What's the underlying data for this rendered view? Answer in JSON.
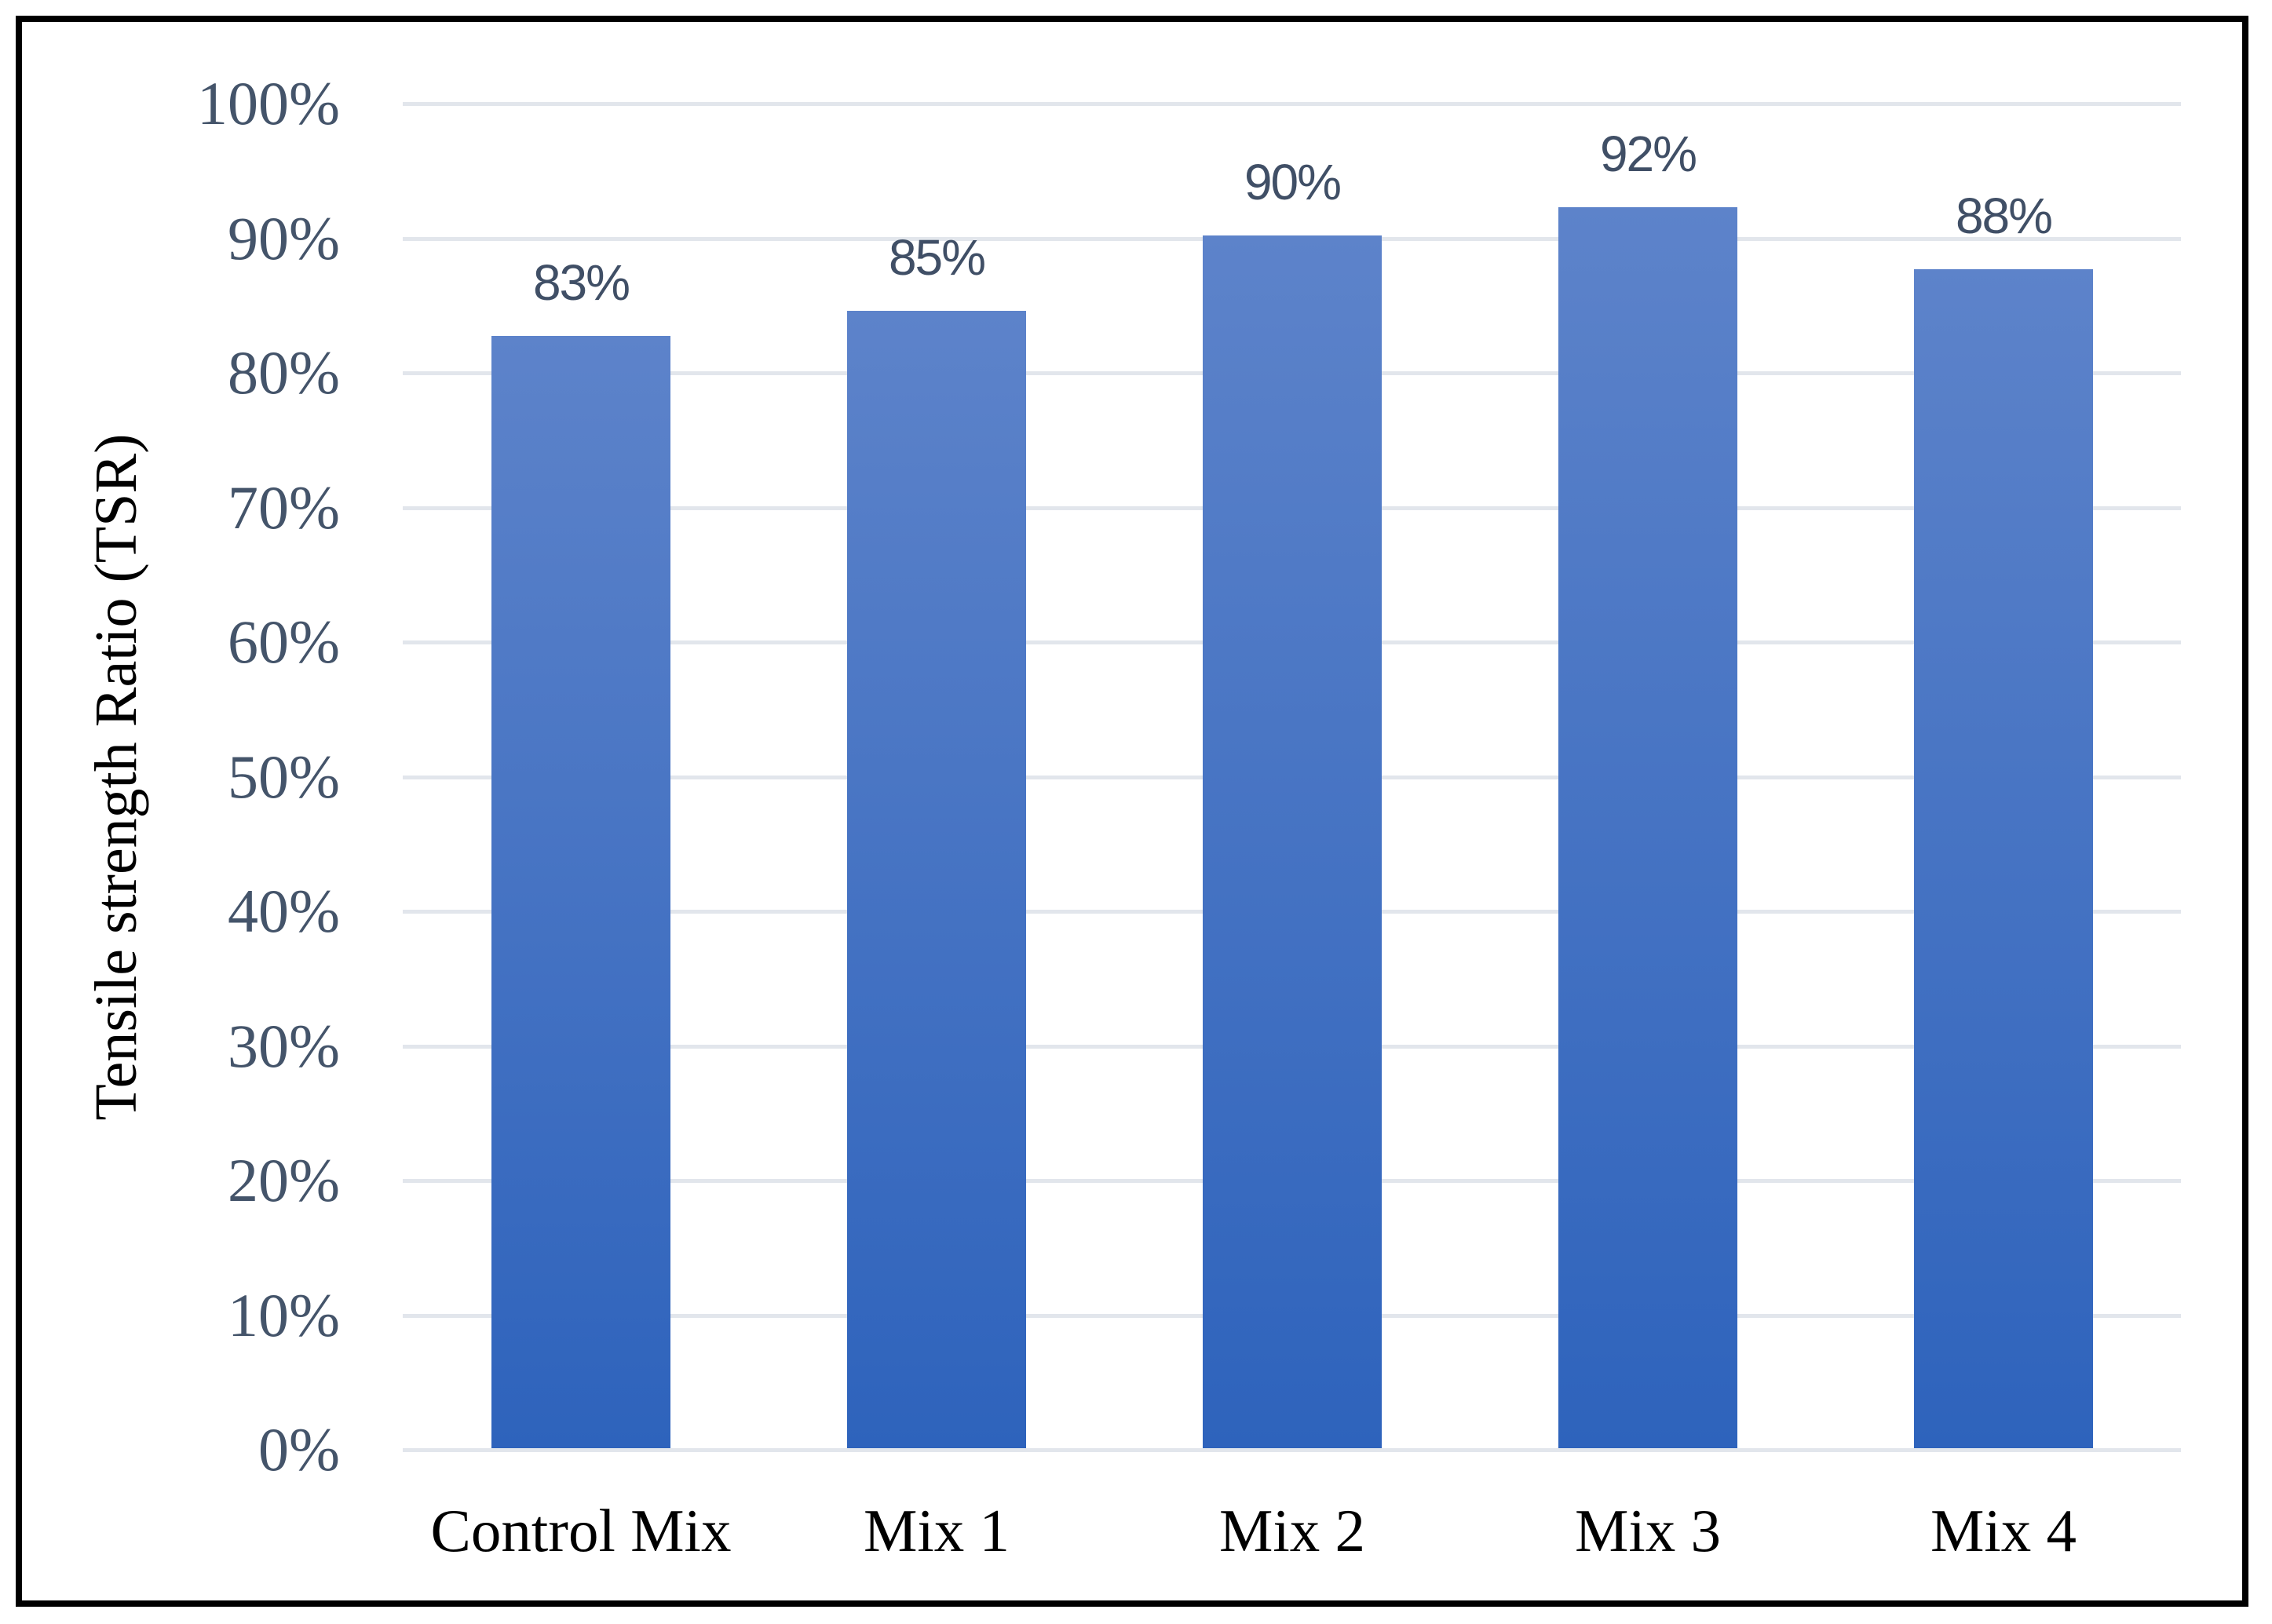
{
  "chart_data": {
    "type": "bar",
    "title": "",
    "categories": [
      "Control Mix",
      "Mix 1",
      "Mix 2",
      "Mix 3",
      "Mix 4"
    ],
    "values": [
      83,
      85,
      90,
      92,
      88
    ],
    "data_labels": [
      "83%",
      "85%",
      "90%",
      "92%",
      "88%"
    ],
    "bar_heights_pct": [
      82.6,
      84.5,
      90.1,
      92.2,
      87.6
    ],
    "xlabel": "",
    "ylabel": "Tensile strength Ratio (TSR)",
    "ylim": [
      0,
      100
    ],
    "ytick_step": 10,
    "ytick_labels": [
      "0%",
      "10%",
      "20%",
      "30%",
      "40%",
      "50%",
      "60%",
      "70%",
      "80%",
      "90%",
      "100%"
    ],
    "grid": "horizontal",
    "legend": "none",
    "bar_gap_ratio": 0.503
  },
  "colors": {
    "background": "#FFFFFF",
    "frame_border": "#000000",
    "gridline": "#E2E6EC",
    "bar_gradient_top": "#5D83CA",
    "bar_gradient_bottom": "#2E63BC",
    "ytick_label": "#44546A",
    "data_label": "#404F66",
    "category_label": "#000000",
    "axis_title": "#000000"
  }
}
